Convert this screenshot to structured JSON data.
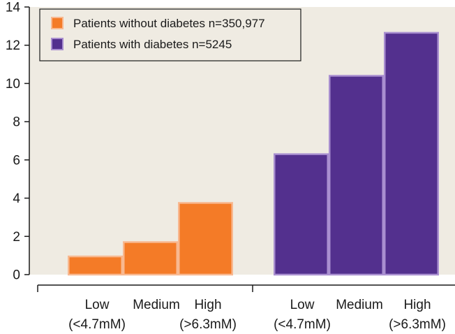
{
  "chart_data": {
    "type": "bar",
    "title": "",
    "xlabel": "",
    "ylabel": "",
    "ylim": [
      0,
      14
    ],
    "yticks": [
      0,
      2,
      4,
      6,
      8,
      10,
      12,
      14
    ],
    "grid": false,
    "legend_position": "top-left",
    "categories": [
      {
        "line1": "Low",
        "line2": "(<4.7mM)"
      },
      {
        "line1": "Medium",
        "line2": ""
      },
      {
        "line1": "High",
        "line2": "(>6.3mM)"
      }
    ],
    "series": [
      {
        "name": "Patients without diabetes n=350,977",
        "color": "#f47b27",
        "edge": "#f8b890",
        "values": [
          0.95,
          1.7,
          3.75
        ]
      },
      {
        "name": "Patients with diabetes n=5245",
        "color": "#53308e",
        "edge": "#a98fd0",
        "values": [
          6.3,
          10.4,
          12.65
        ]
      }
    ],
    "plot_background": "#efebe2"
  }
}
